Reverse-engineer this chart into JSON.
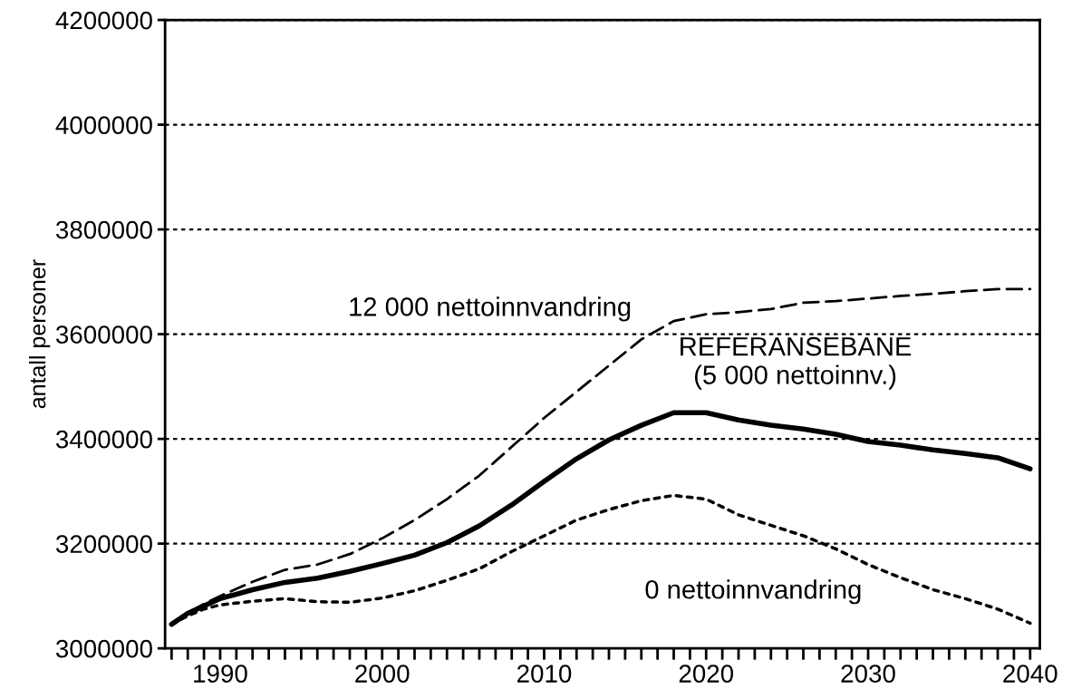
{
  "chart_data": {
    "type": "line",
    "ylabel": "antall personer",
    "x": [
      1987,
      1988,
      1989,
      1990,
      1992,
      1994,
      1996,
      1998,
      2000,
      2002,
      2004,
      2006,
      2008,
      2010,
      2012,
      2014,
      2016,
      2018,
      2020,
      2022,
      2024,
      2026,
      2028,
      2030,
      2032,
      2034,
      2036,
      2038,
      2040
    ],
    "series": [
      {
        "name": "12 000 nettoinnvandring",
        "color": "#000000",
        "line_style": "dashed",
        "values": [
          3046000,
          3067000,
          3085000,
          3100000,
          3127000,
          3150000,
          3160000,
          3180000,
          3210000,
          3245000,
          3285000,
          3330000,
          3385000,
          3440000,
          3490000,
          3540000,
          3590000,
          3625000,
          3638000,
          3642000,
          3648000,
          3660000,
          3663000,
          3668000,
          3673000,
          3677000,
          3682000,
          3686000,
          3686000
        ]
      },
      {
        "name": "REFERANSEBANE\n(5 000 nettoinnv.)",
        "color": "#000000",
        "line_style": "solid",
        "values": [
          3046000,
          3067000,
          3081000,
          3095000,
          3112000,
          3126000,
          3134000,
          3147000,
          3162000,
          3178000,
          3202000,
          3234000,
          3274000,
          3319000,
          3362000,
          3398000,
          3426000,
          3450000,
          3450000,
          3436000,
          3426000,
          3419000,
          3409000,
          3395000,
          3388000,
          3379000,
          3372000,
          3364000,
          3343000
        ]
      },
      {
        "name": "0 nettoinnvandring",
        "color": "#000000",
        "line_style": "dotted",
        "values": [
          3046000,
          3062000,
          3075000,
          3083000,
          3090000,
          3095000,
          3089000,
          3088000,
          3096000,
          3110000,
          3130000,
          3152000,
          3185000,
          3215000,
          3245000,
          3265000,
          3282000,
          3292000,
          3285000,
          3255000,
          3235000,
          3215000,
          3190000,
          3160000,
          3135000,
          3112000,
          3095000,
          3075000,
          3048000
        ]
      }
    ],
    "xlim": [
      1986.6,
      2040.6
    ],
    "xticks": [
      {
        "value": 1987,
        "label": null
      },
      {
        "value": 1988,
        "label": null
      },
      {
        "value": 1989,
        "label": null
      },
      1990,
      {
        "value": 1991,
        "label": null
      },
      {
        "value": 1992,
        "label": null
      },
      {
        "value": 1993,
        "label": null
      },
      {
        "value": 1994,
        "label": null
      },
      {
        "value": 1995,
        "label": null
      },
      {
        "value": 1996,
        "label": null
      },
      {
        "value": 1997,
        "label": null
      },
      {
        "value": 1998,
        "label": null
      },
      {
        "value": 1999,
        "label": null
      },
      2000,
      {
        "value": 2001,
        "label": null
      },
      {
        "value": 2002,
        "label": null
      },
      {
        "value": 2003,
        "label": null
      },
      {
        "value": 2004,
        "label": null
      },
      {
        "value": 2005,
        "label": null
      },
      {
        "value": 2006,
        "label": null
      },
      {
        "value": 2007,
        "label": null
      },
      {
        "value": 2008,
        "label": null
      },
      {
        "value": 2009,
        "label": null
      },
      2010,
      {
        "value": 2011,
        "label": null
      },
      {
        "value": 2012,
        "label": null
      },
      {
        "value": 2013,
        "label": null
      },
      {
        "value": 2014,
        "label": null
      },
      {
        "value": 2015,
        "label": null
      },
      {
        "value": 2016,
        "label": null
      },
      {
        "value": 2017,
        "label": null
      },
      {
        "value": 2018,
        "label": null
      },
      {
        "value": 2019,
        "label": null
      },
      2020,
      {
        "value": 2021,
        "label": null
      },
      {
        "value": 2022,
        "label": null
      },
      {
        "value": 2023,
        "label": null
      },
      {
        "value": 2024,
        "label": null
      },
      {
        "value": 2025,
        "label": null
      },
      {
        "value": 2026,
        "label": null
      },
      {
        "value": 2027,
        "label": null
      },
      {
        "value": 2028,
        "label": null
      },
      {
        "value": 2029,
        "label": null
      },
      2030,
      {
        "value": 2031,
        "label": null
      },
      {
        "value": 2032,
        "label": null
      },
      {
        "value": 2033,
        "label": null
      },
      {
        "value": 2034,
        "label": null
      },
      {
        "value": 2035,
        "label": null
      },
      {
        "value": 2036,
        "label": null
      },
      {
        "value": 2037,
        "label": null
      },
      {
        "value": 2038,
        "label": null
      },
      {
        "value": 2039,
        "label": null
      },
      2040
    ],
    "ylim": [
      3000000,
      4200000
    ],
    "yticks": [
      3000000,
      3200000,
      3400000,
      3600000,
      3800000,
      4000000,
      4200000
    ],
    "grid": "y",
    "legend": false,
    "marker": "none"
  }
}
